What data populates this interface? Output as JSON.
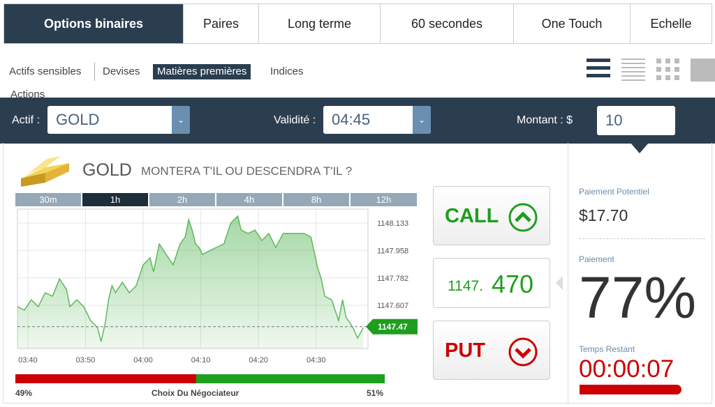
{
  "tabs": [
    "Options binaires",
    "Paires",
    "Long terme",
    "60 secondes",
    "One Touch",
    "Echelle"
  ],
  "subtabs": [
    "Actifs sensibles",
    "Devises",
    "Matières premières",
    "Indices",
    "Actions"
  ],
  "form": {
    "asset_label": "Actif :",
    "asset": "GOLD",
    "validity_label": "Validité :",
    "validity": "04:45",
    "amount_label": "Montant : $",
    "amount": "10"
  },
  "heading": {
    "asset": "GOLD",
    "question": "MONTERA T'IL OU DESCENDRA T'IL ?"
  },
  "timeframes": [
    "30m",
    "1h",
    "2h",
    "4h",
    "8h",
    "12h"
  ],
  "chart_data": {
    "type": "area",
    "color": "#5cb85c",
    "x": [
      218.2,
      219.4,
      220.6,
      221.8,
      223.0,
      224.3,
      225.5,
      226.7,
      227.3,
      228.5,
      229.7,
      230.9,
      232.1,
      232.7,
      233.4,
      234.0,
      234.6,
      235.2,
      236.4,
      237.6,
      238.8,
      240.0,
      241.2,
      241.8,
      242.8,
      244.0,
      245.2,
      246.4,
      247.3,
      247.9,
      248.5,
      249.1,
      249.7,
      250.3,
      251.5,
      252.7,
      254.0,
      255.2,
      255.8,
      256.4,
      257.0,
      258.2,
      259.4,
      260.6,
      261.8,
      263.0,
      264.3,
      266.1,
      267.9,
      269.1,
      270.3,
      270.9,
      271.5,
      272.7,
      273.9,
      274.6,
      275.2,
      276.4,
      277.2,
      278.2
    ],
    "values": [
      1147.598,
      1147.576,
      1147.642,
      1147.598,
      1147.687,
      1147.665,
      1147.776,
      1147.709,
      1147.598,
      1147.642,
      1147.598,
      1147.509,
      1147.464,
      1147.375,
      1147.486,
      1147.642,
      1147.732,
      1147.687,
      1147.754,
      1147.687,
      1147.732,
      1147.865,
      1147.91,
      1147.821,
      1147.999,
      1147.932,
      1147.865,
      1147.999,
      1148.044,
      1148.155,
      1148.088,
      1147.999,
      1147.977,
      1147.932,
      1147.955,
      1147.977,
      1147.999,
      1148.133,
      1148.155,
      1148.177,
      1148.088,
      1148.066,
      1148.088,
      1148.021,
      1148.066,
      1147.977,
      1148.066,
      1148.066,
      1148.066,
      1148.044,
      1147.843,
      1147.776,
      1147.665,
      1147.642,
      1147.509,
      1147.642,
      1147.531,
      1147.464,
      1147.397,
      1147.464
    ],
    "xlim": [
      218.2,
      279.0
    ],
    "xticks": [
      {
        "value": 220,
        "label": "03:40"
      },
      {
        "value": 230,
        "label": "03:50"
      },
      {
        "value": 240,
        "label": "04:00"
      },
      {
        "value": 250,
        "label": "04:10"
      },
      {
        "value": 260,
        "label": "04:20"
      },
      {
        "value": 270,
        "label": "04:30"
      }
    ],
    "ylim": [
      1147.331,
      1148.222
    ],
    "yticks": [
      1148.133,
      1147.958,
      1147.782,
      1147.607
    ],
    "current": 1147.47,
    "grid": true
  },
  "call": "CALL",
  "put": "PUT",
  "quote": {
    "main": "1147.",
    "highlight": "470"
  },
  "sentiment": {
    "label": "Choix Du Négociateur",
    "values": [
      49,
      51
    ],
    "value_labels": [
      "49%",
      "51%"
    ],
    "colors": [
      "#cc0000",
      "#1ea01e"
    ]
  },
  "payout": {
    "potential_label": "Paiement Potentiel",
    "potential": "$17.70",
    "rate_label": "Paiement",
    "rate": "77%",
    "time_label": "Temps Restant",
    "time": "00:00:07"
  }
}
